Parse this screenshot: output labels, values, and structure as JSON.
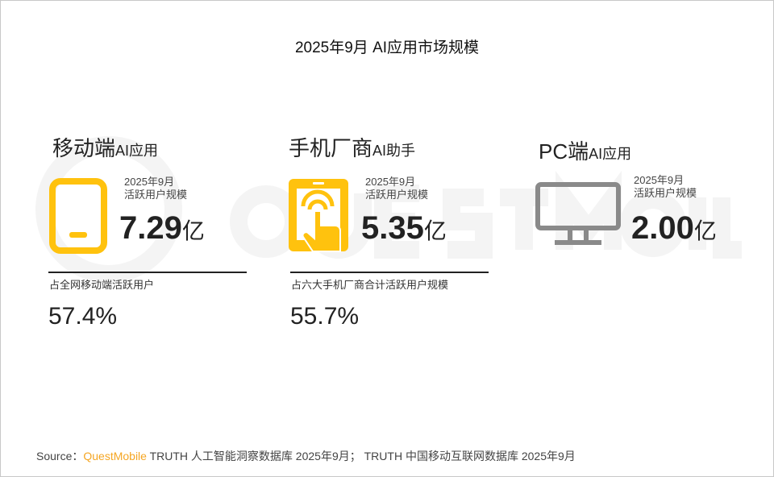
{
  "title": "2025年9月 AI应用市场规模",
  "watermark": "QUESTMOBILE",
  "colors": {
    "accent": "#FFC20E",
    "pc_icon": "#8a8a8a",
    "brand": "#F5A623"
  },
  "cards": [
    {
      "title_main": "移动端",
      "title_suffix": "AI应用",
      "icon": "tablet-icon",
      "sub_line1": "2025年9月",
      "sub_line2": "活跃用户规模",
      "value": "7.29",
      "unit": "亿",
      "pct_label": "占全网移动端活跃用户",
      "pct_value": "57.4%"
    },
    {
      "title_main": "手机厂商",
      "title_suffix": "AI助手",
      "icon": "tablet-touch-icon",
      "sub_line1": "2025年9月",
      "sub_line2": "活跃用户规模",
      "value": "5.35",
      "unit": "亿",
      "pct_label": "占六大手机厂商合计活跃用户规模",
      "pct_value": "55.7%"
    },
    {
      "title_main": "PC端",
      "title_suffix": "AI应用",
      "icon": "monitor-icon",
      "sub_line1": "2025年9月",
      "sub_line2": "活跃用户规模",
      "value": "2.00",
      "unit": "亿"
    }
  ],
  "source": {
    "label": "Source：",
    "brand": "QuestMobile",
    "text": " TRUTH 人工智能洞察数据库 2025年9月； TRUTH 中国移动互联网数据库 2025年9月"
  }
}
